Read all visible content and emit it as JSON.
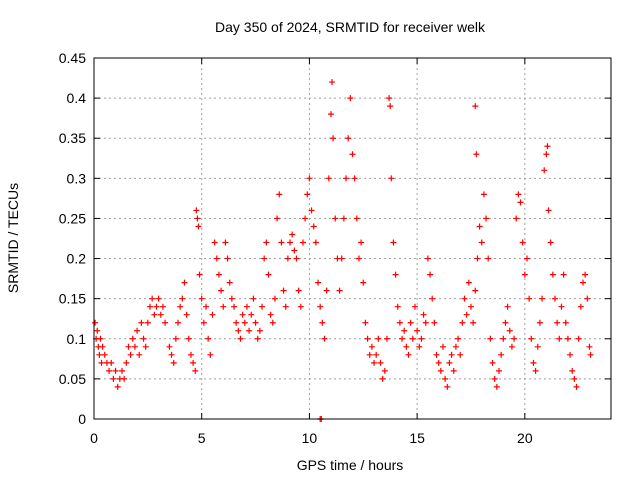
{
  "chart_data": {
    "type": "scatter",
    "title": "Day 350 of 2024, SRMTID for receiver welk",
    "xlabel": "GPS time / hours",
    "ylabel": "SRMTID / TECUs",
    "xlim": [
      0,
      24
    ],
    "ylim": [
      0,
      0.45
    ],
    "xticks": [
      0,
      5,
      10,
      15,
      20
    ],
    "yticks": [
      0,
      0.05,
      0.1,
      0.15,
      0.2,
      0.25,
      0.3,
      0.35,
      0.4,
      0.45
    ],
    "xtick_labels": [
      "0",
      "5",
      "10",
      "15",
      "20"
    ],
    "ytick_labels": [
      "0",
      "0.05",
      "0.1",
      "0.15",
      "0.2",
      "0.25",
      "0.3",
      "0.35",
      "0.4",
      "0.45"
    ],
    "grid": true,
    "marker": "+",
    "color": "#ff0000",
    "series": [
      {
        "name": "SRMTID",
        "points": [
          [
            0.05,
            0.12
          ],
          [
            0.1,
            0.1
          ],
          [
            0.15,
            0.11
          ],
          [
            0.2,
            0.09
          ],
          [
            0.25,
            0.08
          ],
          [
            0.3,
            0.1
          ],
          [
            0.35,
            0.07
          ],
          [
            0.4,
            0.09
          ],
          [
            0.5,
            0.08
          ],
          [
            0.6,
            0.07
          ],
          [
            0.7,
            0.06
          ],
          [
            0.8,
            0.07
          ],
          [
            0.9,
            0.05
          ],
          [
            1.0,
            0.06
          ],
          [
            1.1,
            0.04
          ],
          [
            1.2,
            0.05
          ],
          [
            1.3,
            0.06
          ],
          [
            1.4,
            0.05
          ],
          [
            1.5,
            0.07
          ],
          [
            1.6,
            0.09
          ],
          [
            1.7,
            0.08
          ],
          [
            1.8,
            0.1
          ],
          [
            1.9,
            0.09
          ],
          [
            2.0,
            0.11
          ],
          [
            2.1,
            0.08
          ],
          [
            2.2,
            0.12
          ],
          [
            2.3,
            0.1
          ],
          [
            2.4,
            0.09
          ],
          [
            2.5,
            0.12
          ],
          [
            2.6,
            0.14
          ],
          [
            2.7,
            0.15
          ],
          [
            2.8,
            0.13
          ],
          [
            2.9,
            0.14
          ],
          [
            3.0,
            0.15
          ],
          [
            3.1,
            0.13
          ],
          [
            3.2,
            0.14
          ],
          [
            3.3,
            0.12
          ],
          [
            3.5,
            0.09
          ],
          [
            3.6,
            0.08
          ],
          [
            3.7,
            0.07
          ],
          [
            3.8,
            0.1
          ],
          [
            3.9,
            0.12
          ],
          [
            4.0,
            0.14
          ],
          [
            4.1,
            0.15
          ],
          [
            4.2,
            0.17
          ],
          [
            4.3,
            0.13
          ],
          [
            4.4,
            0.1
          ],
          [
            4.5,
            0.08
          ],
          [
            4.6,
            0.07
          ],
          [
            4.7,
            0.06
          ],
          [
            4.75,
            0.26
          ],
          [
            4.8,
            0.25
          ],
          [
            4.85,
            0.24
          ],
          [
            4.9,
            0.18
          ],
          [
            5.0,
            0.15
          ],
          [
            5.1,
            0.12
          ],
          [
            5.2,
            0.14
          ],
          [
            5.3,
            0.1
          ],
          [
            5.4,
            0.08
          ],
          [
            5.5,
            0.13
          ],
          [
            5.6,
            0.22
          ],
          [
            5.7,
            0.2
          ],
          [
            5.8,
            0.18
          ],
          [
            5.9,
            0.16
          ],
          [
            6.0,
            0.14
          ],
          [
            6.1,
            0.22
          ],
          [
            6.2,
            0.2
          ],
          [
            6.3,
            0.17
          ],
          [
            6.4,
            0.15
          ],
          [
            6.5,
            0.14
          ],
          [
            6.6,
            0.12
          ],
          [
            6.7,
            0.11
          ],
          [
            6.8,
            0.1
          ],
          [
            6.9,
            0.13
          ],
          [
            7.0,
            0.12
          ],
          [
            7.1,
            0.14
          ],
          [
            7.2,
            0.11
          ],
          [
            7.3,
            0.13
          ],
          [
            7.4,
            0.15
          ],
          [
            7.5,
            0.12
          ],
          [
            7.6,
            0.1
          ],
          [
            7.7,
            0.11
          ],
          [
            7.8,
            0.14
          ],
          [
            7.9,
            0.2
          ],
          [
            8.0,
            0.22
          ],
          [
            8.1,
            0.18
          ],
          [
            8.2,
            0.13
          ],
          [
            8.3,
            0.12
          ],
          [
            8.4,
            0.15
          ],
          [
            8.5,
            0.25
          ],
          [
            8.6,
            0.28
          ],
          [
            8.7,
            0.22
          ],
          [
            8.8,
            0.16
          ],
          [
            8.9,
            0.14
          ],
          [
            9.0,
            0.2
          ],
          [
            9.1,
            0.22
          ],
          [
            9.2,
            0.23
          ],
          [
            9.3,
            0.21
          ],
          [
            9.4,
            0.2
          ],
          [
            9.5,
            0.16
          ],
          [
            9.6,
            0.14
          ],
          [
            9.7,
            0.22
          ],
          [
            9.8,
            0.25
          ],
          [
            9.9,
            0.28
          ],
          [
            10.0,
            0.3
          ],
          [
            10.1,
            0.26
          ],
          [
            10.2,
            0.24
          ],
          [
            10.3,
            0.22
          ],
          [
            10.4,
            0.17
          ],
          [
            10.5,
            0.14
          ],
          [
            10.6,
            0.12
          ],
          [
            10.7,
            0.1
          ],
          [
            10.8,
            0.16
          ],
          [
            10.9,
            0.3
          ],
          [
            11.0,
            0.38
          ],
          [
            11.05,
            0.42
          ],
          [
            11.1,
            0.35
          ],
          [
            11.2,
            0.25
          ],
          [
            11.3,
            0.2
          ],
          [
            11.4,
            0.16
          ],
          [
            11.5,
            0.2
          ],
          [
            11.6,
            0.25
          ],
          [
            11.7,
            0.3
          ],
          [
            11.8,
            0.35
          ],
          [
            11.9,
            0.4
          ],
          [
            12.0,
            0.33
          ],
          [
            12.1,
            0.3
          ],
          [
            12.2,
            0.25
          ],
          [
            12.3,
            0.2
          ],
          [
            12.4,
            0.22
          ],
          [
            12.5,
            0.17
          ],
          [
            12.6,
            0.12
          ],
          [
            12.7,
            0.1
          ],
          [
            12.8,
            0.08
          ],
          [
            12.9,
            0.09
          ],
          [
            13.0,
            0.07
          ],
          [
            13.1,
            0.08
          ],
          [
            13.2,
            0.1
          ],
          [
            13.3,
            0.07
          ],
          [
            13.4,
            0.05
          ],
          [
            13.5,
            0.06
          ],
          [
            13.6,
            0.1
          ],
          [
            13.7,
            0.4
          ],
          [
            13.75,
            0.39
          ],
          [
            13.8,
            0.3
          ],
          [
            13.9,
            0.22
          ],
          [
            14.0,
            0.18
          ],
          [
            14.1,
            0.14
          ],
          [
            14.2,
            0.12
          ],
          [
            14.3,
            0.1
          ],
          [
            14.4,
            0.11
          ],
          [
            14.5,
            0.09
          ],
          [
            14.6,
            0.08
          ],
          [
            14.7,
            0.12
          ],
          [
            14.8,
            0.1
          ],
          [
            14.9,
            0.14
          ],
          [
            15.0,
            0.11
          ],
          [
            15.1,
            0.09
          ],
          [
            15.2,
            0.1
          ],
          [
            15.3,
            0.13
          ],
          [
            15.4,
            0.12
          ],
          [
            15.5,
            0.2
          ],
          [
            15.6,
            0.18
          ],
          [
            15.7,
            0.15
          ],
          [
            15.8,
            0.12
          ],
          [
            15.9,
            0.08
          ],
          [
            16.0,
            0.07
          ],
          [
            16.1,
            0.06
          ],
          [
            16.2,
            0.09
          ],
          [
            16.3,
            0.05
          ],
          [
            16.4,
            0.04
          ],
          [
            16.5,
            0.07
          ],
          [
            16.6,
            0.08
          ],
          [
            16.7,
            0.06
          ],
          [
            16.8,
            0.09
          ],
          [
            16.9,
            0.1
          ],
          [
            17.0,
            0.08
          ],
          [
            17.1,
            0.12
          ],
          [
            17.2,
            0.15
          ],
          [
            17.3,
            0.13
          ],
          [
            17.4,
            0.17
          ],
          [
            17.5,
            0.14
          ],
          [
            17.6,
            0.12
          ],
          [
            17.7,
            0.16
          ],
          [
            17.8,
            0.2
          ],
          [
            17.9,
            0.24
          ],
          [
            18.0,
            0.22
          ],
          [
            18.1,
            0.28
          ],
          [
            18.2,
            0.25
          ],
          [
            18.3,
            0.2
          ],
          [
            18.4,
            0.1
          ],
          [
            18.5,
            0.07
          ],
          [
            18.6,
            0.05
          ],
          [
            18.7,
            0.04
          ],
          [
            18.8,
            0.06
          ],
          [
            18.9,
            0.08
          ],
          [
            19.0,
            0.1
          ],
          [
            19.1,
            0.12
          ],
          [
            19.2,
            0.14
          ],
          [
            19.3,
            0.11
          ],
          [
            19.4,
            0.09
          ],
          [
            19.5,
            0.1
          ],
          [
            19.6,
            0.25
          ],
          [
            19.7,
            0.28
          ],
          [
            19.8,
            0.27
          ],
          [
            19.9,
            0.22
          ],
          [
            20.0,
            0.18
          ],
          [
            20.1,
            0.2
          ],
          [
            20.2,
            0.15
          ],
          [
            20.3,
            0.1
          ],
          [
            20.4,
            0.07
          ],
          [
            20.5,
            0.06
          ],
          [
            20.6,
            0.09
          ],
          [
            20.7,
            0.12
          ],
          [
            20.8,
            0.15
          ],
          [
            20.9,
            0.31
          ],
          [
            21.0,
            0.33
          ],
          [
            21.05,
            0.34
          ],
          [
            21.1,
            0.26
          ],
          [
            21.2,
            0.22
          ],
          [
            21.3,
            0.18
          ],
          [
            21.4,
            0.15
          ],
          [
            21.5,
            0.12
          ],
          [
            21.6,
            0.1
          ],
          [
            21.7,
            0.14
          ],
          [
            21.8,
            0.18
          ],
          [
            21.9,
            0.12
          ],
          [
            22.0,
            0.1
          ],
          [
            22.1,
            0.08
          ],
          [
            22.2,
            0.06
          ],
          [
            22.3,
            0.05
          ],
          [
            22.4,
            0.04
          ],
          [
            22.5,
            0.1
          ],
          [
            22.6,
            0.14
          ],
          [
            22.7,
            0.17
          ],
          [
            22.8,
            0.18
          ],
          [
            22.9,
            0.15
          ],
          [
            23.0,
            0.09
          ],
          [
            23.05,
            0.08
          ],
          [
            17.7,
            0.39
          ],
          [
            17.75,
            0.33
          ],
          [
            10.5,
            0.0
          ],
          [
            10.55,
            0.0
          ]
        ]
      }
    ]
  }
}
